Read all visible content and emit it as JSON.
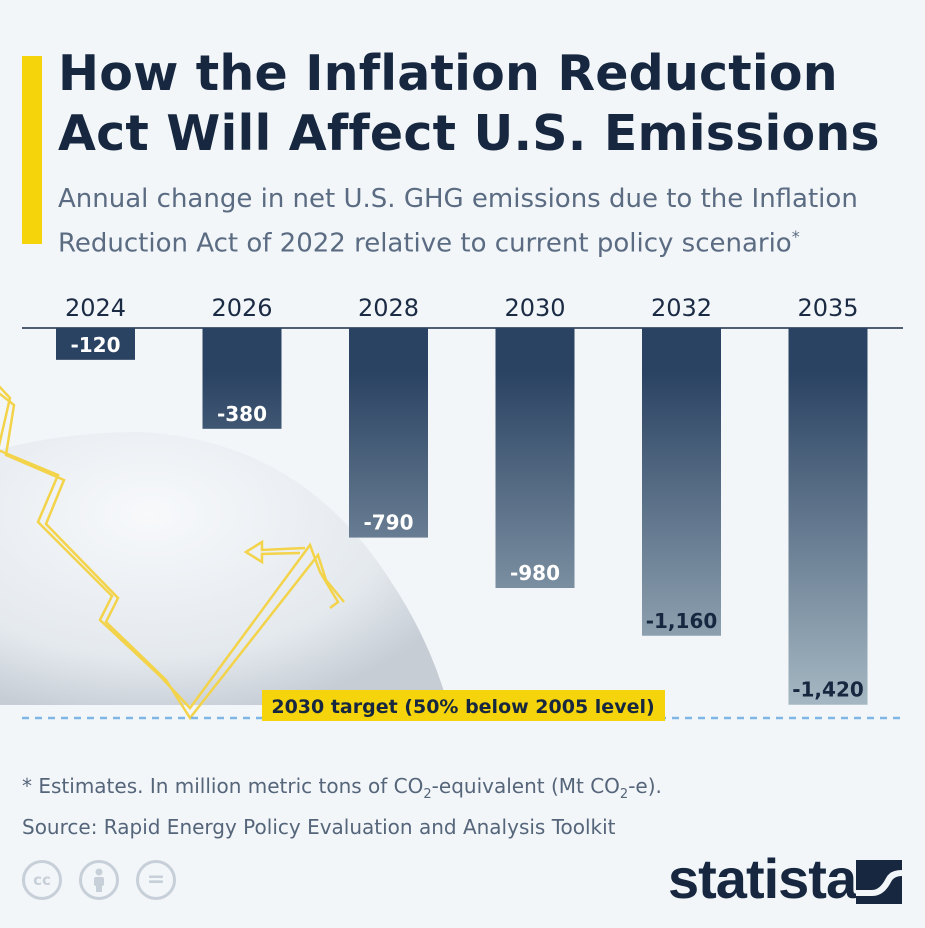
{
  "header": {
    "title": "How the Inflation Reduction Act Will Affect U.S. Emissions",
    "subtitle": "Annual change in net U.S. GHG emissions due to the Inflation Reduction Act of 2022 relative to current policy scenario",
    "subtitle_mark": "*"
  },
  "chart_data": {
    "type": "bar",
    "categories": [
      "2024",
      "2026",
      "2028",
      "2030",
      "2032",
      "2035"
    ],
    "values": [
      -120,
      -380,
      -790,
      -980,
      -1160,
      -1420
    ],
    "value_labels": [
      "-120",
      "-380",
      "-790",
      "-980",
      "-1,160",
      "-1,420"
    ],
    "ylim": [
      -1470,
      0
    ],
    "grid": false,
    "reference_line": {
      "value": -1470,
      "label": "2030 target (50% below 2005 level)",
      "color": "#7fb6e6"
    },
    "colors": {
      "bar_top": "#2b4363",
      "bar_bottom": "#a4b6c1",
      "target_label_bg": "#f6d40b",
      "accent": "#f6d40b"
    }
  },
  "footer": {
    "note_prefix": "* Estimates. In million metric tons of CO",
    "note_sub1": "2",
    "note_mid": "-equivalent (Mt CO",
    "note_sub2": "2",
    "note_suffix": "-e).",
    "source": "Source: Rapid Energy Policy Evaluation and Analysis Toolkit",
    "icons": [
      "cc-icon",
      "by-icon",
      "nd-icon"
    ],
    "cc_text": "cc",
    "nd_text": "="
  },
  "brand": {
    "name": "statista"
  }
}
